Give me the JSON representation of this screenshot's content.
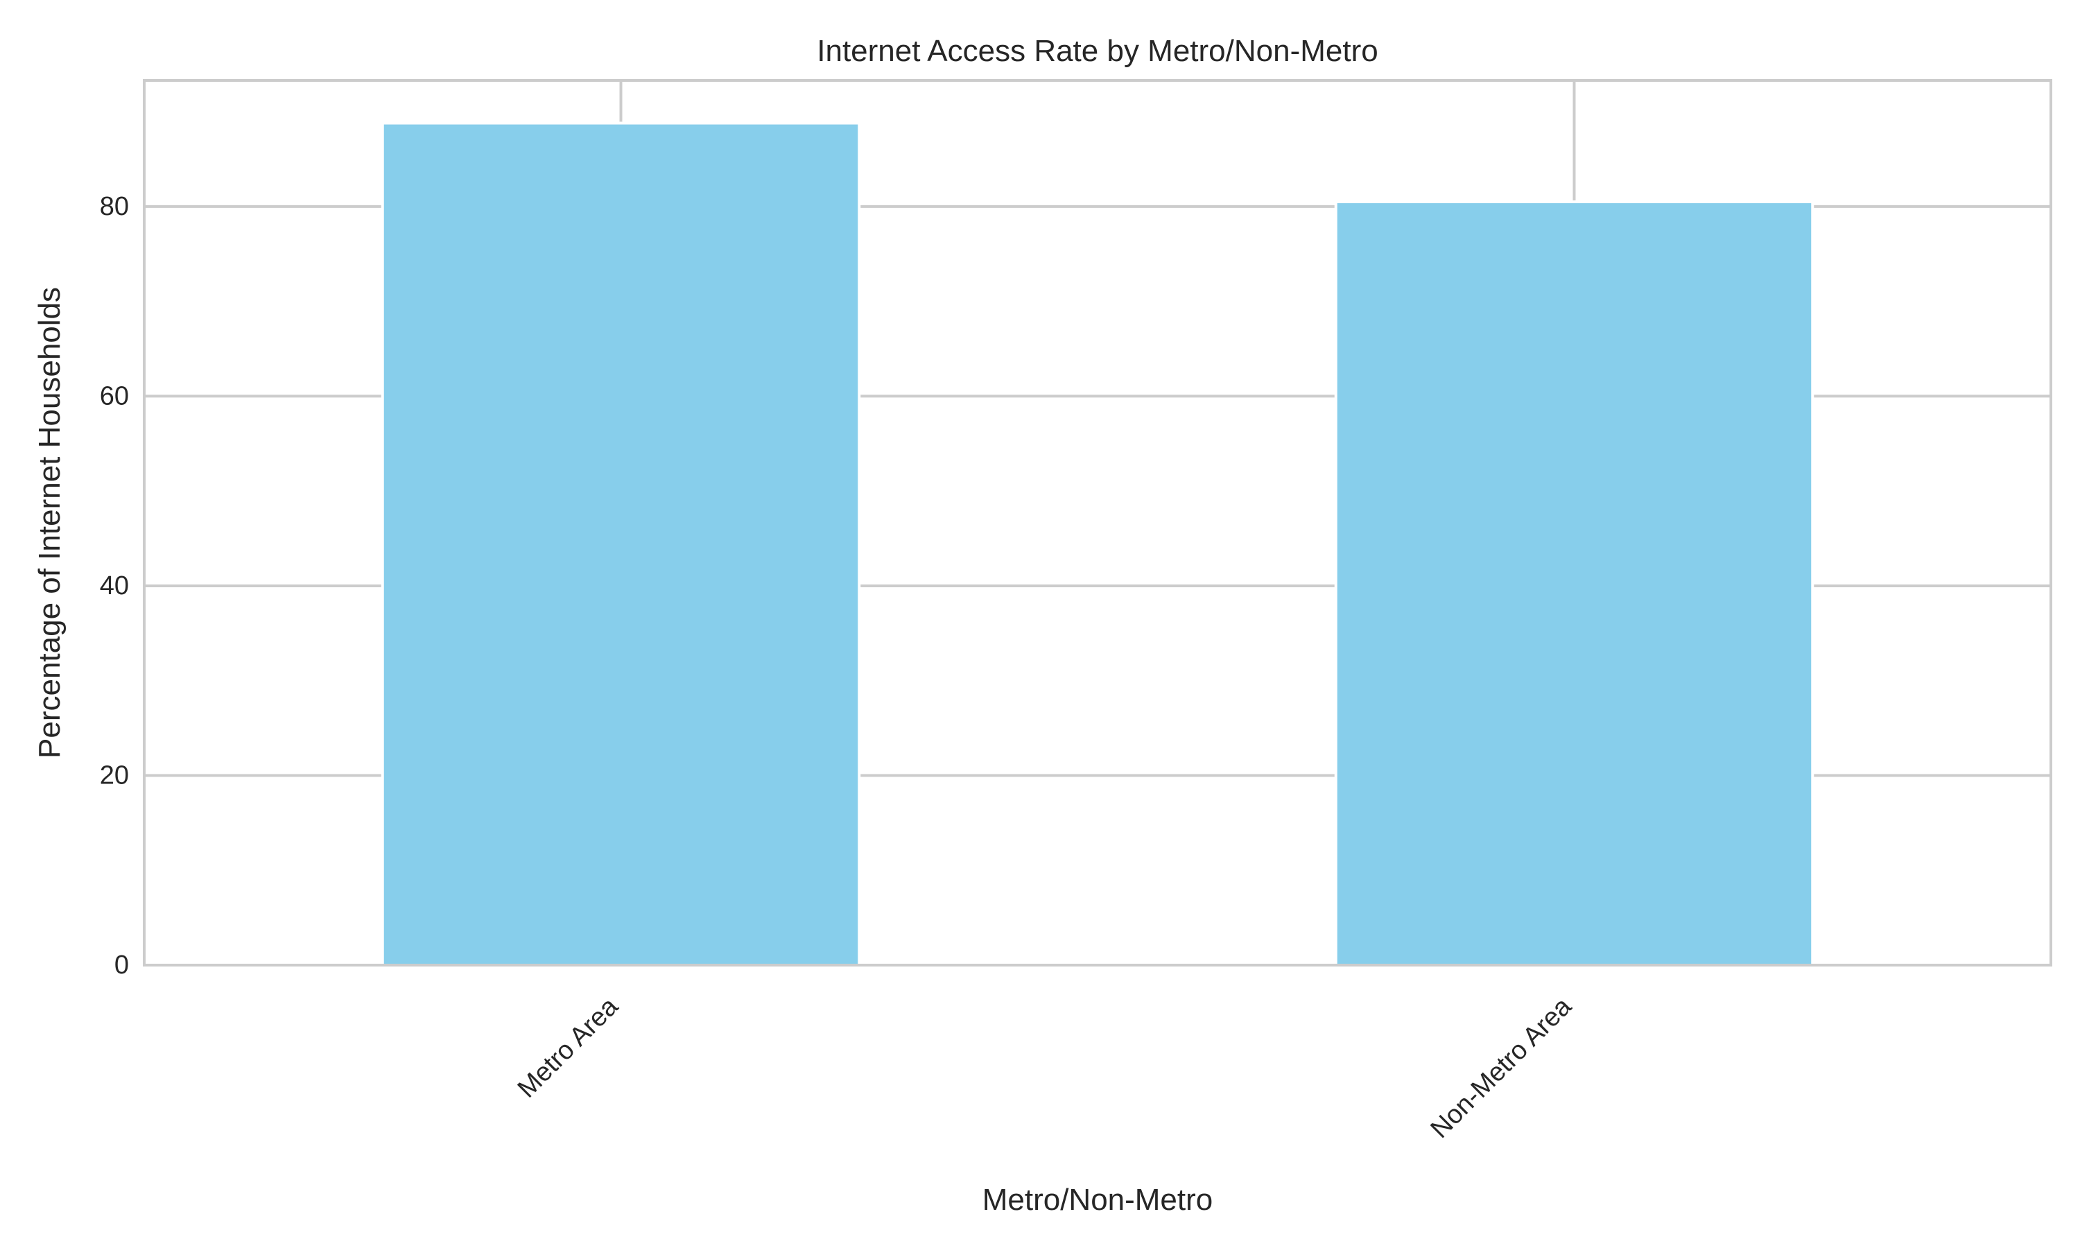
{
  "chart_data": {
    "type": "bar",
    "title": "Internet Access Rate by Metro/Non-Metro",
    "xlabel": "Metro/Non-Metro",
    "ylabel": "Percentage of Internet Households",
    "categories": [
      "Metro Area",
      "Non-Metro Area"
    ],
    "values": [
      88.8,
      80.5
    ],
    "ylim": [
      0,
      93.3
    ],
    "yticks": [
      0,
      20,
      40,
      60,
      80
    ],
    "bar_color": "#87CEEB",
    "grid": true,
    "legend": "none"
  }
}
